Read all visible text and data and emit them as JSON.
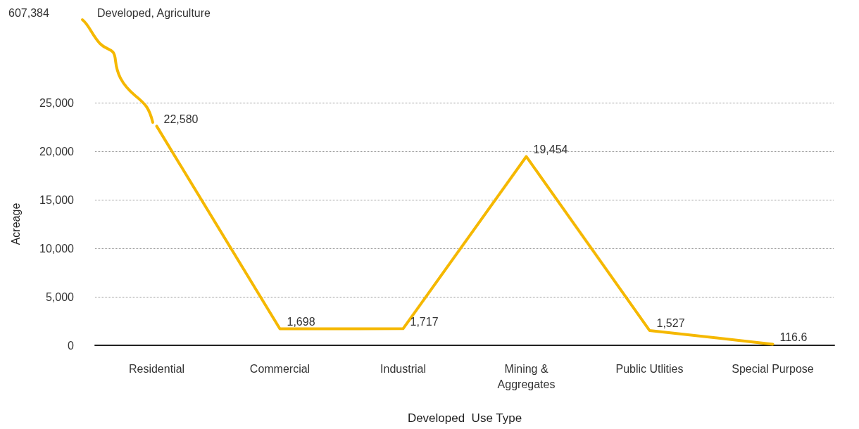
{
  "chart_data": {
    "type": "line",
    "xlabel": "Developed  Use Type",
    "ylabel": "Acreage",
    "categories": [
      "Residential",
      "Commercial",
      "Industrial",
      "Mining &\nAggregates",
      "Public Utlities",
      "Special Purpose"
    ],
    "values": [
      22580,
      1698,
      1717,
      19454,
      1527,
      116.6
    ],
    "value_labels": [
      "22,580",
      "1,698",
      "1,717",
      "19,454",
      "1,527",
      "116.6"
    ],
    "color": "#f5b800",
    "ylim": [
      0,
      25000
    ],
    "yticks": [
      0,
      {
        "value": 5000,
        "label": "5,000"
      },
      {
        "value": 10000,
        "label": "10,000"
      },
      {
        "value": 15000,
        "label": "15,000"
      },
      {
        "value": 20000,
        "label": "20,000"
      },
      {
        "value": 25000,
        "label": "25,000"
      }
    ],
    "grid": "y",
    "marker": "none",
    "line_style": "solid",
    "annotations": [
      "607,384",
      "Developed, Agriculture"
    ]
  }
}
